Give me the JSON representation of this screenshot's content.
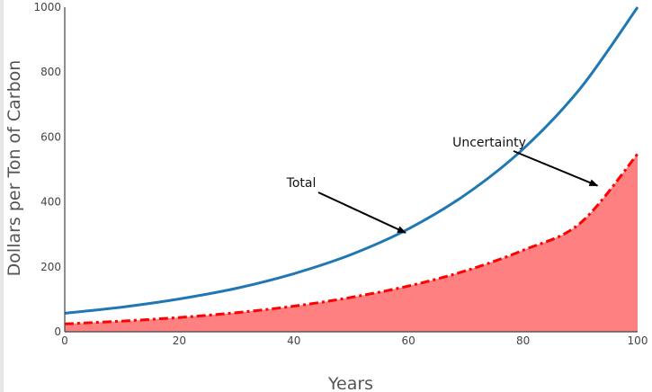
{
  "chart_data": {
    "type": "line",
    "title": "",
    "xlabel": "Years",
    "ylabel": "Dollars per Ton of Carbon",
    "xlim": [
      0,
      100
    ],
    "ylim": [
      0,
      1000
    ],
    "x_ticks": [
      0,
      20,
      40,
      60,
      80,
      100
    ],
    "y_ticks": [
      0,
      200,
      400,
      600,
      800,
      1000
    ],
    "grid": false,
    "legend": "none",
    "series": [
      {
        "color": "#1f77b4",
        "style": "solid line",
        "x": [
          0,
          10,
          20,
          30,
          40,
          50,
          60,
          70,
          80,
          90,
          100
        ],
        "y": [
          57,
          76,
          101,
          134,
          179,
          238,
          317,
          423,
          563,
          750,
          1000
        ]
      },
      {
        "color": "#ff0000",
        "fill_color": "#ff8080",
        "style": "dash-dot line with area fill to zero",
        "x": [
          0,
          10,
          20,
          30,
          40,
          50,
          60,
          70,
          80,
          90,
          100
        ],
        "y": [
          24,
          33,
          44,
          59,
          79,
          106,
          141,
          188,
          251,
          335,
          548
        ]
      }
    ],
    "annotations": [
      {
        "text": "Total",
        "point": [
          59.5,
          305
        ]
      },
      {
        "text": "Uncertainty",
        "point": [
          93,
          450
        ]
      }
    ]
  },
  "colors": {
    "total_line": "#1f77b4",
    "uncertainty_line": "#ff0000",
    "uncertainty_fill": "#ff8080",
    "axis": "#444444"
  }
}
